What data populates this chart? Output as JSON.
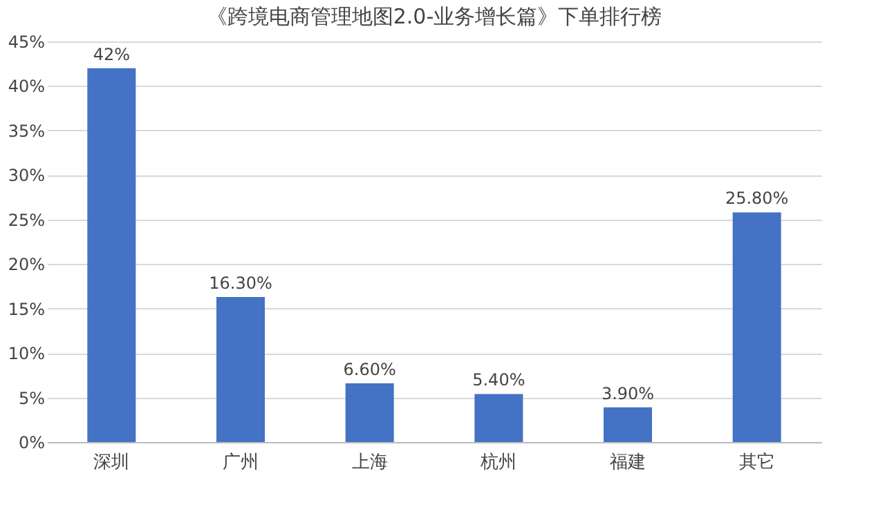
{
  "chart_data": {
    "type": "bar",
    "title": "《跨境电商管理地图2.0-业务增长篇》下单排行榜",
    "categories": [
      "深圳",
      "广州",
      "上海",
      "杭州",
      "福建",
      "其它"
    ],
    "values": [
      42,
      16.3,
      6.6,
      5.4,
      3.9,
      25.8
    ],
    "value_labels": [
      "42%",
      "16.30%",
      "6.60%",
      "5.40%",
      "3.90%",
      "25.80%"
    ],
    "color": "#4472c4",
    "ylim": [
      0,
      45
    ],
    "yticks": [
      {
        "value": 0,
        "label": "0%"
      },
      {
        "value": 5,
        "label": "5%"
      },
      {
        "value": 10,
        "label": "10%"
      },
      {
        "value": 15,
        "label": "15%"
      },
      {
        "value": 20,
        "label": "20%"
      },
      {
        "value": 25,
        "label": "25%"
      },
      {
        "value": 30,
        "label": "30%"
      },
      {
        "value": 35,
        "label": "35%"
      },
      {
        "value": 40,
        "label": "40%"
      },
      {
        "value": 45,
        "label": "45%"
      }
    ],
    "grid": "y"
  }
}
